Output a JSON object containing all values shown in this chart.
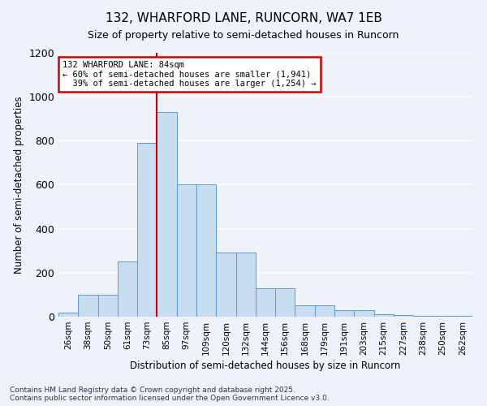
{
  "title_line1": "132, WHARFORD LANE, RUNCORN, WA7 1EB",
  "title_line2": "Size of property relative to semi-detached houses in Runcorn",
  "xlabel": "Distribution of semi-detached houses by size in Runcorn",
  "ylabel": "Number of semi-detached properties",
  "property_label": "132 WHARFORD LANE: 84sqm",
  "pct_smaller": 60,
  "n_smaller": 1941,
  "pct_larger": 39,
  "n_larger": 1254,
  "bar_color": "#c8ddf0",
  "bar_edge_color": "#5b9bd5",
  "line_color": "#cc0000",
  "annotation_box_color": "#cc0000",
  "background_color": "#eef2fb",
  "grid_color": "#ffffff",
  "categories": [
    "26sqm",
    "38sqm",
    "50sqm",
    "61sqm",
    "73sqm",
    "85sqm",
    "97sqm",
    "109sqm",
    "120sqm",
    "132sqm",
    "144sqm",
    "156sqm",
    "168sqm",
    "179sqm",
    "191sqm",
    "203sqm",
    "215sqm",
    "227sqm",
    "238sqm",
    "250sqm",
    "262sqm"
  ],
  "values": [
    20,
    100,
    100,
    250,
    790,
    930,
    600,
    600,
    290,
    290,
    130,
    130,
    50,
    50,
    30,
    30,
    12,
    8,
    5,
    5,
    2
  ],
  "ylim": [
    0,
    1200
  ],
  "yticks": [
    0,
    200,
    400,
    600,
    800,
    1000,
    1200
  ],
  "footnote1": "Contains HM Land Registry data © Crown copyright and database right 2025.",
  "footnote2": "Contains public sector information licensed under the Open Government Licence v3.0."
}
